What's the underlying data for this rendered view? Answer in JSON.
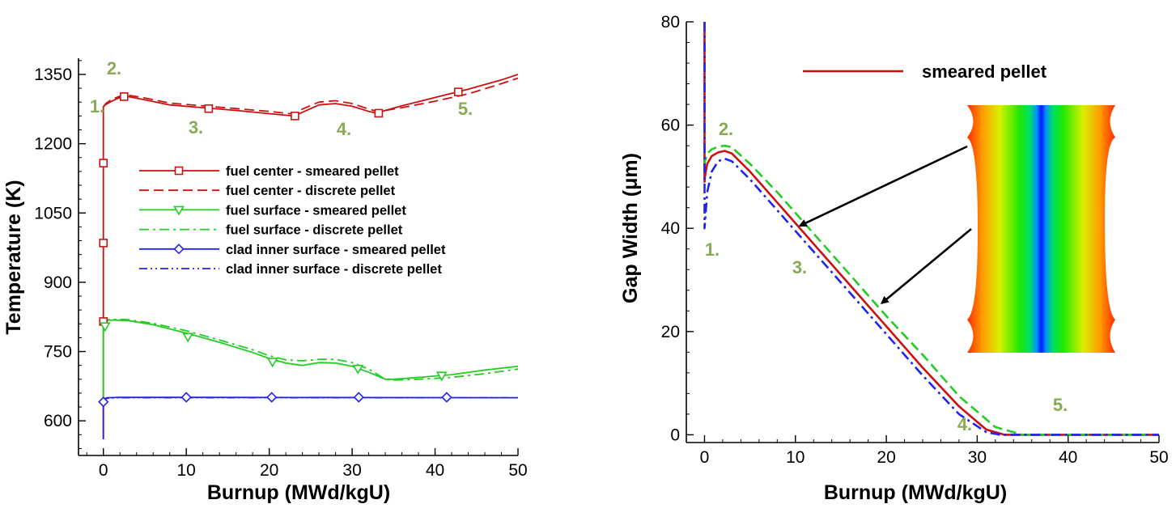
{
  "colors": {
    "red": "#cc1111",
    "green": "#22cc22",
    "blue": "#2222ee",
    "annotation": "#8aaa55",
    "arrow": "#000000"
  },
  "chart_data": [
    {
      "type": "line",
      "xlabel": "Burnup (MWd/kgU)",
      "ylabel": "Temperature (K)",
      "xlim": [
        -3,
        50
      ],
      "ylim": [
        525,
        1385
      ],
      "x_ticks": [
        "0",
        "10",
        "20",
        "30",
        "40",
        "50"
      ],
      "y_ticks": [
        "600",
        "750",
        "900",
        "1050",
        "1200",
        "1350"
      ],
      "x_tick_values": [
        0,
        10,
        20,
        30,
        40,
        50
      ],
      "y_tick_values": [
        600,
        750,
        900,
        1050,
        1200,
        1350
      ],
      "legend_position": "center-right",
      "series": [
        {
          "name": "fuel center - smeared pellet",
          "color": "#cc1111",
          "dash": "solid",
          "marker": "square",
          "x": [
            0,
            0,
            0.3,
            1,
            2,
            3,
            5,
            8,
            12,
            16,
            20,
            23,
            24,
            26,
            28,
            30,
            32,
            33,
            34,
            36,
            40,
            44,
            48,
            50
          ],
          "y": [
            560,
            1280,
            1285,
            1292,
            1300,
            1302,
            1295,
            1284,
            1278,
            1272,
            1265,
            1260,
            1268,
            1284,
            1287,
            1281,
            1270,
            1266,
            1272,
            1282,
            1300,
            1318,
            1338,
            1350
          ],
          "marker_x": [
            0,
            0,
            0,
            2.5,
            12.7,
            23.1,
            33.2,
            42.8
          ],
          "marker_y": [
            815,
            985,
            1158,
            1302,
            1276,
            1260,
            1266,
            1312
          ]
        },
        {
          "name": "fuel center - discrete pellet",
          "color": "#cc1111",
          "dash": "dashed",
          "marker": "none",
          "x": [
            0,
            0.3,
            1,
            2,
            3,
            5,
            8,
            12,
            16,
            20,
            23,
            24,
            26,
            28,
            30,
            32,
            33,
            34,
            36,
            40,
            44,
            48,
            50
          ],
          "y": [
            1280,
            1287,
            1296,
            1303,
            1305,
            1299,
            1288,
            1282,
            1276,
            1270,
            1264,
            1275,
            1290,
            1293,
            1287,
            1275,
            1270,
            1272,
            1278,
            1292,
            1308,
            1330,
            1342
          ]
        },
        {
          "name": "fuel surface - smeared pellet",
          "color": "#22cc22",
          "dash": "solid",
          "marker": "triangle-down",
          "x": [
            0,
            0,
            0.2,
            0.6,
            1.5,
            3,
            6,
            10,
            14,
            18,
            20,
            22,
            24,
            26,
            28,
            30,
            32,
            34,
            35,
            38,
            42,
            46,
            50
          ],
          "y": [
            640,
            805,
            812,
            818,
            818,
            817,
            808,
            790,
            770,
            748,
            735,
            725,
            720,
            726,
            725,
            718,
            705,
            690,
            690,
            694,
            700,
            710,
            718
          ],
          "marker_x": [
            0.2,
            10.2,
            20.4,
            30.7,
            40.8
          ],
          "marker_y": [
            805,
            782,
            728,
            713,
            698
          ]
        },
        {
          "name": "fuel surface - discrete pellet",
          "color": "#22cc22",
          "dash": "dashdot",
          "marker": "none",
          "x": [
            0,
            0.2,
            0.6,
            1.5,
            3,
            6,
            10,
            14,
            18,
            20,
            22,
            24,
            26,
            28,
            30,
            32,
            34,
            35,
            38,
            42,
            46,
            50
          ],
          "y": [
            805,
            813,
            819,
            820,
            819,
            811,
            795,
            775,
            754,
            741,
            732,
            730,
            733,
            733,
            726,
            712,
            690,
            688,
            690,
            694,
            702,
            712
          ]
        },
        {
          "name": "clad inner surface - smeared pellet",
          "color": "#2222ee",
          "dash": "solid",
          "marker": "diamond",
          "x": [
            0,
            0,
            0.1,
            0.5,
            2,
            50
          ],
          "y": [
            560,
            640,
            648,
            650,
            651,
            650
          ],
          "marker_x": [
            0,
            10,
            20.3,
            30.8,
            41.4
          ],
          "marker_y": [
            641,
            651,
            651,
            651,
            651
          ]
        },
        {
          "name": "clad inner surface - discrete pellet",
          "color": "#2222ee",
          "dash": "dashdot2",
          "marker": "none",
          "x": [
            0,
            0.1,
            0.5,
            2,
            50
          ],
          "y": [
            640,
            647,
            649,
            650,
            650
          ]
        }
      ],
      "annotations": [
        "1.",
        "2.",
        "3.",
        "4.",
        "5."
      ]
    },
    {
      "type": "line",
      "xlabel": "Burnup (MWd/kgU)",
      "ylabel": "Gap Width (μm)",
      "xlim": [
        -2,
        50
      ],
      "ylim": [
        -1.5,
        80
      ],
      "x_ticks": [
        "0",
        "10",
        "20",
        "30",
        "40",
        "50"
      ],
      "y_ticks": [
        "0",
        "20",
        "40",
        "60",
        "80"
      ],
      "x_tick_values": [
        0,
        10,
        20,
        30,
        40,
        50
      ],
      "y_tick_values": [
        0,
        20,
        40,
        60,
        80
      ],
      "legend_position": "top-right",
      "series": [
        {
          "name": "smeared pellet",
          "color": "#cc1111",
          "dash": "solid",
          "x": [
            0,
            0,
            0.05,
            0.3,
            0.8,
            1.5,
            2.2,
            3,
            5,
            8,
            12,
            16,
            20,
            24,
            28,
            31,
            33,
            33.8,
            36,
            50
          ],
          "y": [
            80,
            49,
            50,
            52.5,
            54,
            54.7,
            55,
            54.5,
            51,
            45,
            37,
            29,
            21,
            13,
            5.5,
            1,
            0,
            0,
            0,
            0
          ]
        },
        {
          "name": "",
          "color": "#22cc22",
          "dash": "dashed",
          "x": [
            0,
            0.05,
            0.3,
            0.8,
            1.5,
            2.2,
            3,
            5,
            8,
            12,
            16,
            20,
            24,
            28,
            32,
            34,
            35,
            36,
            50
          ],
          "y": [
            52,
            53,
            54.5,
            55.3,
            55.8,
            56,
            55.7,
            52.5,
            47,
            39,
            31,
            23,
            15.5,
            7.5,
            1.5,
            0.5,
            0,
            0,
            0
          ]
        },
        {
          "name": "",
          "color": "#2222ee",
          "dash": "dashdot",
          "x": [
            0,
            0,
            0.05,
            0.3,
            0.8,
            1.5,
            2.2,
            3,
            5,
            8,
            12,
            16,
            20,
            24,
            28,
            31,
            32.5,
            36,
            50
          ],
          "y": [
            80,
            40,
            41,
            47,
            51,
            53,
            53.5,
            53,
            49.5,
            43.5,
            35.5,
            27.5,
            19.5,
            11.5,
            4,
            0.5,
            0,
            0,
            0
          ]
        }
      ],
      "arrows_to": [
        [
          10.5,
          40.5
        ],
        [
          19.5,
          25.5
        ]
      ],
      "annotations": [
        "1.",
        "2.",
        "3.",
        "4.",
        "5."
      ]
    }
  ],
  "annotation_labels": {
    "left": [
      {
        "text": "1."
      },
      {
        "text": "2."
      },
      {
        "text": "3."
      },
      {
        "text": "4."
      },
      {
        "text": "5."
      }
    ],
    "right": [
      {
        "text": "1."
      },
      {
        "text": "2."
      },
      {
        "text": "3."
      },
      {
        "text": "4."
      },
      {
        "text": "5."
      }
    ]
  }
}
